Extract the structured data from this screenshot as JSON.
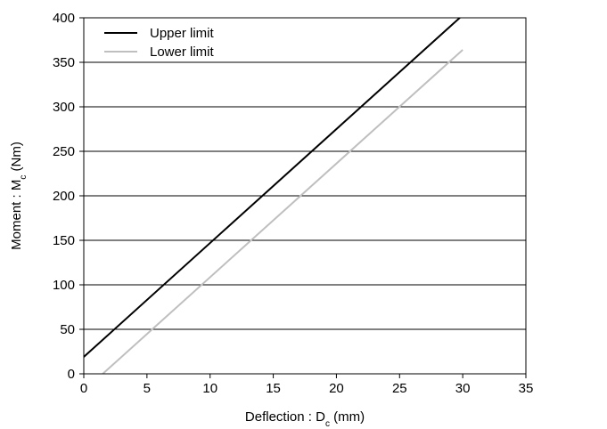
{
  "chart_data": {
    "type": "line",
    "title": "",
    "xlabel": {
      "main": "Deflection : D",
      "sub": "c",
      "unit": " (mm)"
    },
    "ylabel": {
      "main": "Moment : M",
      "sub": "c",
      "unit": " (Nm)"
    },
    "xlim": [
      0,
      35
    ],
    "ylim": [
      0,
      400
    ],
    "xticks": [
      0,
      5,
      10,
      15,
      20,
      25,
      30,
      35
    ],
    "yticks": [
      0,
      50,
      100,
      150,
      200,
      250,
      300,
      350,
      400
    ],
    "grid": "horizontal",
    "legend_position": "top-left",
    "series": [
      {
        "name": "Upper limit",
        "color": "#000000",
        "x": [
          0,
          30
        ],
        "y": [
          19,
          403
        ]
      },
      {
        "name": "Lower limit",
        "color": "#bfbfbf",
        "x": [
          1.5,
          30
        ],
        "y": [
          0,
          364
        ]
      }
    ]
  }
}
